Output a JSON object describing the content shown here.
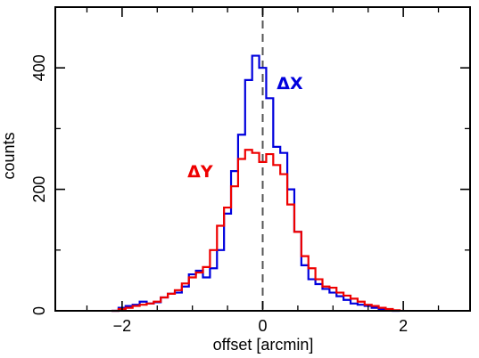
{
  "chart_data": {
    "type": "histogram",
    "xlabel": "offset [arcmin]",
    "ylabel": "counts",
    "xlim": [
      -2.95,
      2.95
    ],
    "ylim": [
      0,
      500
    ],
    "xticks": [
      -2,
      0,
      2
    ],
    "xtick_labels": [
      "−2",
      "0",
      "2"
    ],
    "xticks_minor": [
      -2.5,
      -1.5,
      -1,
      -0.5,
      0.5,
      1,
      1.5,
      2.5
    ],
    "yticks": [
      0,
      200,
      400
    ],
    "ytick_labels": [
      "0",
      "200",
      "400"
    ],
    "yticks_minor": [
      100,
      300
    ],
    "reference_line": {
      "x": 0,
      "style": "dashed",
      "color": "#555555"
    },
    "bin_edges": [
      -2.15,
      -2.05,
      -1.95,
      -1.85,
      -1.75,
      -1.65,
      -1.55,
      -1.45,
      -1.35,
      -1.25,
      -1.15,
      -1.05,
      -0.95,
      -0.85,
      -0.75,
      -0.65,
      -0.55,
      -0.45,
      -0.35,
      -0.25,
      -0.15,
      -0.05,
      0.05,
      0.15,
      0.25,
      0.35,
      0.45,
      0.55,
      0.65,
      0.75,
      0.85,
      0.95,
      1.05,
      1.15,
      1.25,
      1.35,
      1.45,
      1.55,
      1.65,
      1.75,
      1.85,
      1.95
    ],
    "series": [
      {
        "name": "ΔX",
        "color": "#0000dd",
        "values": [
          0,
          5,
          8,
          10,
          15,
          12,
          14,
          22,
          28,
          30,
          40,
          60,
          66,
          55,
          70,
          100,
          160,
          230,
          290,
          380,
          420,
          400,
          350,
          270,
          260,
          200,
          130,
          75,
          52,
          44,
          36,
          30,
          24,
          18,
          12,
          10,
          8,
          5,
          3,
          2,
          0
        ]
      },
      {
        "name": "ΔY",
        "color": "#ee0000",
        "values": [
          0,
          3,
          5,
          8,
          10,
          12,
          15,
          22,
          28,
          34,
          45,
          55,
          63,
          72,
          100,
          140,
          170,
          205,
          250,
          265,
          260,
          245,
          258,
          240,
          225,
          175,
          130,
          90,
          70,
          52,
          40,
          38,
          30,
          25,
          20,
          15,
          10,
          8,
          5,
          3,
          1
        ]
      }
    ],
    "annotations": [
      {
        "text": "ΔX",
        "x": 0.2,
        "y": 365,
        "color": "#0000dd"
      },
      {
        "text": "ΔY",
        "x": -1.07,
        "y": 220,
        "color": "#ee0000"
      }
    ]
  }
}
